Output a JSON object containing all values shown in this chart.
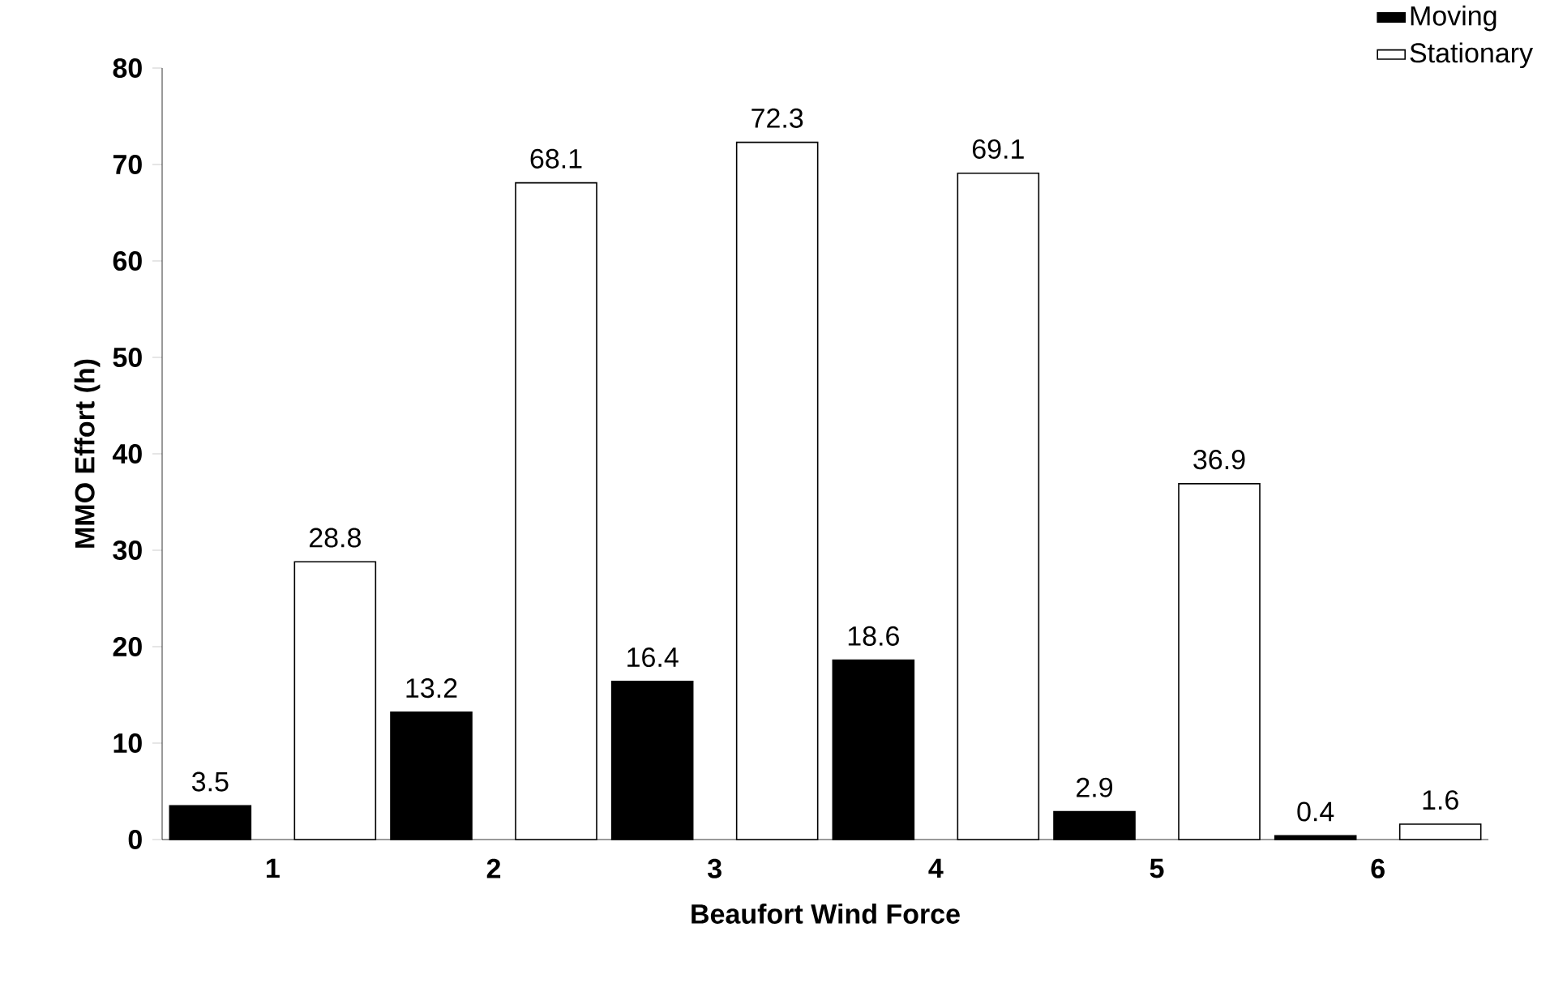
{
  "chart_data": {
    "type": "bar",
    "xlabel": "Beaufort Wind Force",
    "ylabel": "MMO Effort (h)",
    "categories": [
      "1",
      "2",
      "3",
      "4",
      "5",
      "6"
    ],
    "series": [
      {
        "name": "Moving",
        "color": "#000000",
        "values": [
          3.5,
          13.2,
          16.4,
          18.6,
          2.9,
          0.4
        ]
      },
      {
        "name": "Stationary",
        "color": "#ffffff",
        "values": [
          28.8,
          68.1,
          72.3,
          69.1,
          36.9,
          1.6
        ]
      }
    ],
    "ylim": [
      0,
      80
    ],
    "yticks": [
      0,
      10,
      20,
      30,
      40,
      50,
      60,
      70,
      80
    ],
    "data_labels": true,
    "legend": "top right",
    "grid": false
  }
}
